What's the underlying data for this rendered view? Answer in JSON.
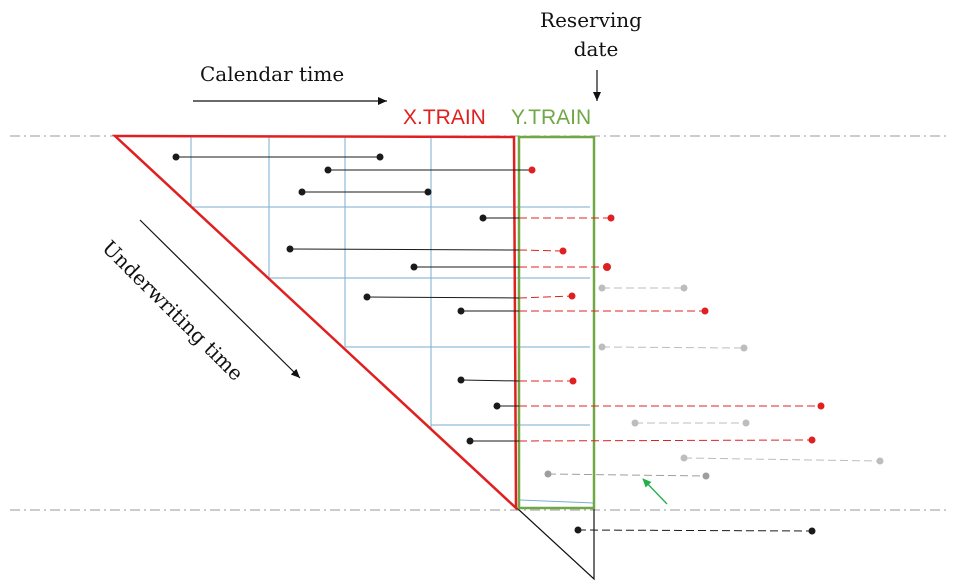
{
  "labels": {
    "calendar_time": "Calendar time",
    "reserving_date_line1": "Reserving",
    "reserving_date_line2": "date",
    "x_train": "X.TRAIN",
    "y_train": "Y.TRAIN",
    "underwriting_time": "Underwriting time"
  },
  "colors": {
    "x_train": "#e02020",
    "y_train": "#6fa845",
    "grid": "#7aaecf",
    "observed": "#1a1a1a",
    "future_red": "#e02020",
    "future_gray": "#bdbdbd",
    "outside": "#1a1a1a",
    "highlight_arrow": "#22b04b"
  }
}
